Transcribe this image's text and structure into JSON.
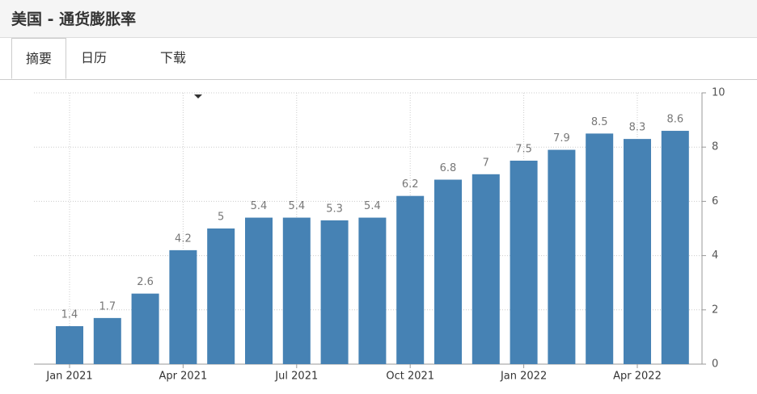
{
  "header": {
    "title": "美国 - 通货膨胀率"
  },
  "tabs": [
    "摘要",
    "日历",
    "下载"
  ],
  "chart_data": {
    "type": "bar",
    "categories": [
      "Jan 2021",
      null,
      null,
      "Apr 2021",
      null,
      null,
      "Jul 2021",
      null,
      null,
      "Oct 2021",
      null,
      null,
      "Jan 2022",
      null,
      null,
      "Apr 2022",
      null
    ],
    "values": [
      1.4,
      1.7,
      2.6,
      4.2,
      5,
      5.4,
      5.4,
      5.3,
      5.4,
      6.2,
      6.8,
      7,
      7.5,
      7.9,
      8.5,
      8.3,
      8.6
    ],
    "color": "#4682b4",
    "ylim": [
      0,
      10
    ],
    "yticks": [
      0,
      2,
      4,
      6,
      8,
      10
    ],
    "grid": true,
    "y_axis_side": "right"
  }
}
